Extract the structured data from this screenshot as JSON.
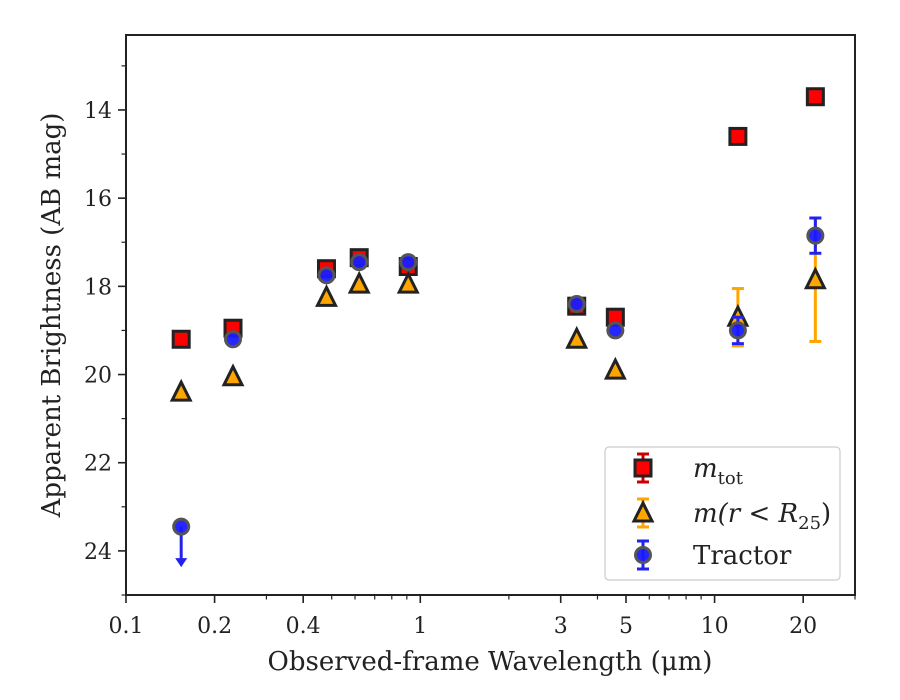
{
  "chart_data": {
    "type": "scatter",
    "xlabel": "Observed-frame Wavelength (μm)",
    "ylabel": "Apparent Brightness (AB mag)",
    "x_scale": "log",
    "xlim": [
      0.1,
      30
    ],
    "ylim": [
      25,
      12.3
    ],
    "y_inverted": true,
    "x_ticks": [
      0.1,
      0.2,
      0.4,
      1,
      3,
      5,
      10,
      20
    ],
    "x_tick_labels": [
      "0.1",
      "0.2",
      "0.4",
      "1",
      "3",
      "5",
      "10",
      "20"
    ],
    "y_ticks": [
      14,
      16,
      18,
      20,
      22,
      24
    ],
    "y_tick_labels": [
      "14",
      "16",
      "18",
      "20",
      "22",
      "24"
    ],
    "grid": false,
    "legend_position": "lower-right",
    "series": [
      {
        "name": "m_tot",
        "marker": "square",
        "color": "#ff0000",
        "edge_color": "#222222",
        "error_color": "#cc0000",
        "x": [
          0.154,
          0.231,
          0.48,
          0.62,
          0.91,
          3.4,
          4.6,
          12.0,
          22.0
        ],
        "y": [
          19.2,
          18.95,
          17.6,
          17.35,
          17.55,
          18.45,
          18.7,
          14.6,
          13.7
        ],
        "yerr": [
          0.05,
          0.05,
          0.05,
          0.05,
          0.05,
          0.05,
          0.05,
          0.05,
          0.05
        ]
      },
      {
        "name": "m(r < R25)",
        "marker": "triangle",
        "color": "#ffa500",
        "edge_color": "#222222",
        "error_color": "#ffa500",
        "x": [
          0.154,
          0.231,
          0.48,
          0.62,
          0.91,
          3.4,
          4.6,
          12.0,
          22.0
        ],
        "y": [
          20.4,
          20.05,
          18.25,
          17.95,
          17.95,
          19.2,
          19.9,
          18.7,
          17.85
        ],
        "yerr": [
          0,
          0,
          0,
          0,
          0,
          0,
          0,
          0.65,
          1.4
        ]
      },
      {
        "name": "Tractor",
        "marker": "circle",
        "color": "#1a1aff",
        "edge_color": "#555555",
        "error_color": "#2222ee",
        "x": [
          0.154,
          0.231,
          0.48,
          0.62,
          0.91,
          3.4,
          4.6,
          12.0,
          22.0
        ],
        "y": [
          23.45,
          19.2,
          17.75,
          17.45,
          17.45,
          18.4,
          19.0,
          19.0,
          16.85
        ],
        "yerr": [
          0,
          0,
          0,
          0,
          0,
          0,
          0,
          0.3,
          0.4
        ],
        "upper_limit": [
          true,
          false,
          false,
          false,
          false,
          false,
          false,
          false,
          false
        ]
      }
    ],
    "legend": {
      "entries": [
        {
          "label_main": "m",
          "label_sub": "tot",
          "label_tail": ""
        },
        {
          "label_main": "m(r < R",
          "label_sub": "25",
          "label_tail": ")"
        },
        {
          "label_main": "Tractor",
          "label_sub": "",
          "label_tail": ""
        }
      ]
    }
  }
}
